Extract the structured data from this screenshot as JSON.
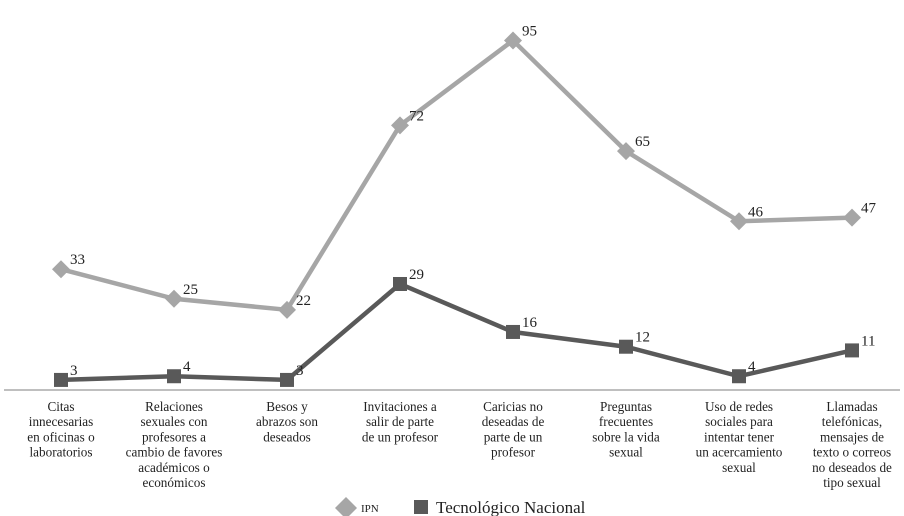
{
  "chart_data": {
    "type": "line",
    "categories": [
      [
        "Citas",
        "innecesarias",
        "en oficinas o",
        "laboratorios"
      ],
      [
        "Relaciones",
        "sexuales con",
        "profesores a",
        "cambio de favores",
        "académicos o",
        "económicos"
      ],
      [
        "Besos y",
        "abrazos son",
        "deseados"
      ],
      [
        "Invitaciones a",
        "salir de parte",
        "de un profesor"
      ],
      [
        "Caricias no",
        "deseadas de",
        "parte de un",
        "profesor"
      ],
      [
        "Preguntas",
        "frecuentes",
        "sobre la vida",
        "sexual"
      ],
      [
        "Uso de redes",
        "sociales para",
        "intentar tener",
        "un acercamiento",
        "sexual"
      ],
      [
        "Llamadas",
        "telefónicas,",
        "mensajes de",
        "texto o correos",
        "no deseados de",
        "tipo sexual"
      ]
    ],
    "series": [
      {
        "name": "IPN",
        "values": [
          33,
          25,
          22,
          72,
          95,
          65,
          46,
          47
        ],
        "color": "#a6a6a6",
        "marker": "diamond"
      },
      {
        "name": "Tecnológico Nacional",
        "values": [
          3,
          4,
          3,
          29,
          16,
          12,
          4,
          11
        ],
        "color": "#595959",
        "marker": "square"
      }
    ],
    "title": "",
    "xlabel": "",
    "ylabel": "",
    "ylim": [
      0,
      100
    ],
    "grid": false,
    "legend_position": "bottom"
  }
}
